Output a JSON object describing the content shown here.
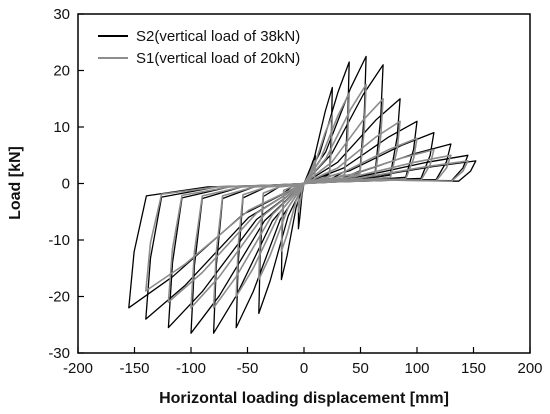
{
  "chart_data": {
    "type": "line",
    "title": "",
    "xlabel": "Horizontal loading displacement [mm]",
    "ylabel": "Load [kN]",
    "xlim": [
      -200,
      200
    ],
    "ylim": [
      -30,
      30
    ],
    "xticks": [
      -200,
      -150,
      -100,
      -50,
      0,
      50,
      100,
      150,
      200
    ],
    "yticks": [
      -30,
      -20,
      -10,
      0,
      10,
      20,
      30
    ],
    "grid": false,
    "legend_position": "top-left",
    "series": [
      {
        "name": "S2(vertical load of 38kN)",
        "color": "#000000",
        "peak_points": [
          {
            "x": -155,
            "y": -22
          },
          {
            "x": -140,
            "y": -24
          },
          {
            "x": -120,
            "y": -25.5
          },
          {
            "x": -100,
            "y": -26.5
          },
          {
            "x": -80,
            "y": -26.5
          },
          {
            "x": -60,
            "y": -25.5
          },
          {
            "x": -40,
            "y": -23
          },
          {
            "x": -20,
            "y": -17
          },
          {
            "x": -5,
            "y": -8
          },
          {
            "x": 10,
            "y": 5
          },
          {
            "x": 25,
            "y": 17
          },
          {
            "x": 40,
            "y": 21.5
          },
          {
            "x": 55,
            "y": 22.5
          },
          {
            "x": 70,
            "y": 21
          },
          {
            "x": 85,
            "y": 15
          },
          {
            "x": 100,
            "y": 11
          },
          {
            "x": 115,
            "y": 9
          },
          {
            "x": 130,
            "y": 7
          },
          {
            "x": 145,
            "y": 5
          },
          {
            "x": 152,
            "y": 4
          }
        ]
      },
      {
        "name": "S1(vertical load of 20kN)",
        "color": "#8c8c8c",
        "peak_points": [
          {
            "x": -140,
            "y": -19
          },
          {
            "x": -120,
            "y": -21
          },
          {
            "x": -100,
            "y": -22
          },
          {
            "x": -80,
            "y": -22
          },
          {
            "x": -60,
            "y": -20
          },
          {
            "x": -40,
            "y": -17
          },
          {
            "x": -20,
            "y": -12
          },
          {
            "x": -5,
            "y": -5
          },
          {
            "x": 10,
            "y": 4
          },
          {
            "x": 25,
            "y": 12
          },
          {
            "x": 40,
            "y": 16
          },
          {
            "x": 55,
            "y": 17.5
          },
          {
            "x": 70,
            "y": 15
          },
          {
            "x": 85,
            "y": 11
          },
          {
            "x": 100,
            "y": 8
          },
          {
            "x": 115,
            "y": 6
          },
          {
            "x": 130,
            "y": 5
          },
          {
            "x": 145,
            "y": 4
          }
        ]
      }
    ]
  }
}
